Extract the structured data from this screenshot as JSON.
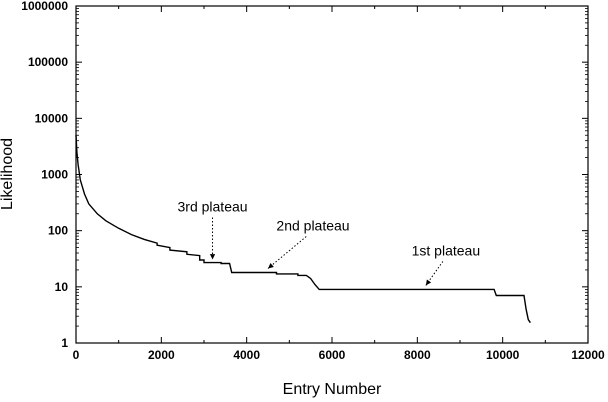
{
  "chart_data": {
    "type": "line",
    "xlabel": "Entry Number",
    "ylabel": "Likelihood",
    "y_scale": "log",
    "xlim": [
      0,
      12000
    ],
    "ylim": [
      1,
      1000000
    ],
    "grid": false,
    "x_ticks": [
      {
        "value": 0,
        "label": "0"
      },
      {
        "value": 2000,
        "label": "2000"
      },
      {
        "value": 4000,
        "label": "4000"
      },
      {
        "value": 6000,
        "label": "6000"
      },
      {
        "value": 8000,
        "label": "8000"
      },
      {
        "value": 10000,
        "label": "10000"
      },
      {
        "value": 12000,
        "label": "12000"
      }
    ],
    "y_ticks": [
      {
        "value": 1,
        "label": "1"
      },
      {
        "value": 10,
        "label": "10"
      },
      {
        "value": 100,
        "label": "100"
      },
      {
        "value": 1000,
        "label": "1000"
      },
      {
        "value": 10000,
        "label": "10000"
      },
      {
        "value": 100000,
        "label": "100000"
      },
      {
        "value": 1000000,
        "label": "1000000"
      }
    ],
    "series": [
      {
        "x": [
          0,
          20,
          50,
          100,
          200,
          300,
          500,
          700,
          1000,
          1300,
          1600,
          1900,
          1900,
          2200,
          2200,
          2600,
          2600,
          2900,
          2900,
          3000,
          3000,
          3400,
          3400,
          3600,
          3650,
          4000,
          4400,
          4700,
          4700,
          5200,
          5200,
          5400,
          5500,
          5600,
          5700,
          6000,
          7000,
          8000,
          9000,
          9800,
          9850,
          10000,
          10500,
          10550,
          10600,
          10650
        ],
        "y": [
          5000,
          2500,
          1500,
          800,
          450,
          300,
          200,
          150,
          110,
          85,
          70,
          60,
          55,
          50,
          45,
          42,
          38,
          36,
          30,
          30,
          27,
          27,
          26,
          26,
          18,
          18,
          18,
          18,
          17,
          17,
          16,
          16,
          14,
          11,
          9,
          9,
          9,
          9,
          9,
          9,
          7,
          7,
          7,
          4,
          2.6,
          2.3
        ]
      }
    ],
    "annotations": [
      {
        "text": "3rd plateau",
        "point_x": 3200,
        "point_y": 26
      },
      {
        "text": "2nd plateau",
        "point_x": 4500,
        "point_y": 18
      },
      {
        "text": "1st plateau",
        "point_x": 8200,
        "point_y": 9
      }
    ]
  }
}
